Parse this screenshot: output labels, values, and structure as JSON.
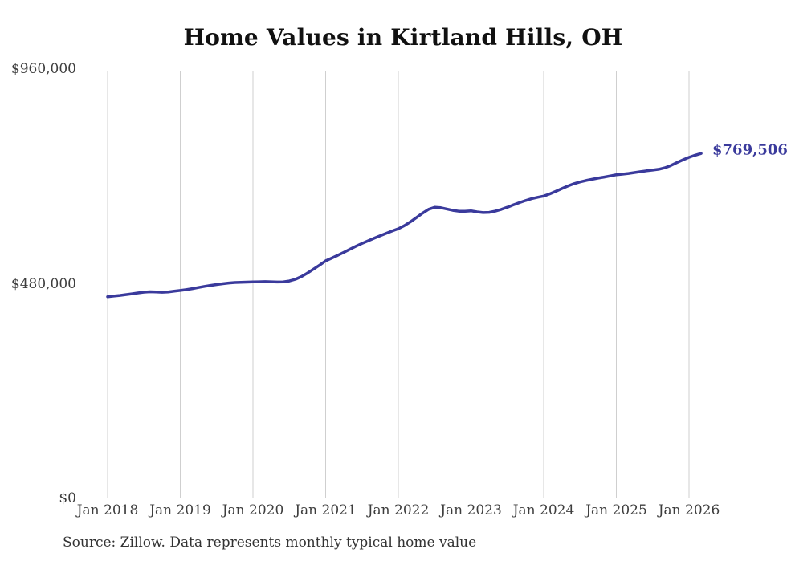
{
  "title": "Home Values in Kirtland Hills, OH",
  "end_label": "$769,506",
  "source_note": "Source: Zillow. Data represents monthly typical home value",
  "colors": {
    "line": "#3a3a9c",
    "end_label": "#3a3a9c",
    "grid": "#cfcfcf",
    "title": "#111111",
    "tick_text": "#3d3d3d",
    "source_text": "#333333",
    "background": "#ffffff"
  },
  "chart_data": {
    "type": "line",
    "title": "Home Values in Kirtland Hills, OH",
    "xlabel": "",
    "ylabel": "",
    "ylim": [
      0,
      960000
    ],
    "grid": "vertical-only",
    "legend": "none",
    "y_ticks": [
      {
        "label": "$960,000",
        "value": 960000
      },
      {
        "label": "$480,000",
        "value": 480000
      },
      {
        "label": "$0",
        "value": 0
      }
    ],
    "x_tick_labels": [
      "Jan 2018",
      "Jan 2019",
      "Jan 2020",
      "Jan 2021",
      "Jan 2022",
      "Jan 2023",
      "Jan 2024",
      "Jan 2025",
      "Jan 2026"
    ],
    "end_value": 769506,
    "months": [
      "2018-01",
      "2018-02",
      "2018-03",
      "2018-04",
      "2018-05",
      "2018-06",
      "2018-07",
      "2018-08",
      "2018-09",
      "2018-10",
      "2018-11",
      "2018-12",
      "2019-01",
      "2019-02",
      "2019-03",
      "2019-04",
      "2019-05",
      "2019-06",
      "2019-07",
      "2019-08",
      "2019-09",
      "2019-10",
      "2019-11",
      "2019-12",
      "2020-01",
      "2020-02",
      "2020-03",
      "2020-04",
      "2020-05",
      "2020-06",
      "2020-07",
      "2020-08",
      "2020-09",
      "2020-10",
      "2020-11",
      "2020-12",
      "2021-01",
      "2021-02",
      "2021-03",
      "2021-04",
      "2021-05",
      "2021-06",
      "2021-07",
      "2021-08",
      "2021-09",
      "2021-10",
      "2021-11",
      "2021-12",
      "2022-01",
      "2022-02",
      "2022-03",
      "2022-04",
      "2022-05",
      "2022-06",
      "2022-07",
      "2022-08",
      "2022-09",
      "2022-10",
      "2022-11",
      "2022-12",
      "2023-01",
      "2023-02",
      "2023-03",
      "2023-04",
      "2023-05",
      "2023-06",
      "2023-07",
      "2023-08",
      "2023-09",
      "2023-10",
      "2023-11",
      "2023-12",
      "2024-01",
      "2024-02",
      "2024-03",
      "2024-04",
      "2024-05",
      "2024-06",
      "2024-07",
      "2024-08",
      "2024-09",
      "2024-10",
      "2024-11",
      "2024-12",
      "2025-01",
      "2025-02",
      "2025-03",
      "2025-04",
      "2025-05",
      "2025-06",
      "2025-07",
      "2025-08",
      "2025-09",
      "2025-10",
      "2025-11",
      "2025-12",
      "2026-01",
      "2026-02",
      "2026-03"
    ],
    "values": [
      449200,
      450500,
      452000,
      453800,
      455600,
      457500,
      459300,
      460200,
      459800,
      459100,
      459900,
      461500,
      463200,
      465000,
      467200,
      469800,
      472300,
      474500,
      476400,
      478200,
      479900,
      480900,
      481300,
      481800,
      482100,
      482600,
      482900,
      482500,
      481900,
      482400,
      484300,
      488100,
      494200,
      502100,
      510800,
      519900,
      529400,
      535500,
      541800,
      548400,
      555200,
      562000,
      568300,
      574100,
      579800,
      585400,
      590800,
      596100,
      601100,
      608000,
      616500,
      626000,
      636000,
      644500,
      649000,
      648200,
      645300,
      642200,
      640300,
      640100,
      641100,
      638800,
      637200,
      637800,
      640500,
      644300,
      649200,
      654400,
      659500,
      664100,
      668200,
      671500,
      674200,
      679000,
      684800,
      690800,
      696600,
      701800,
      705800,
      708900,
      711600,
      714300,
      716600,
      719200,
      721900,
      723200,
      724800,
      726700,
      728700,
      730700,
      732300,
      734100,
      737400,
      742600,
      748900,
      755300,
      760900,
      765400,
      769506
    ]
  }
}
